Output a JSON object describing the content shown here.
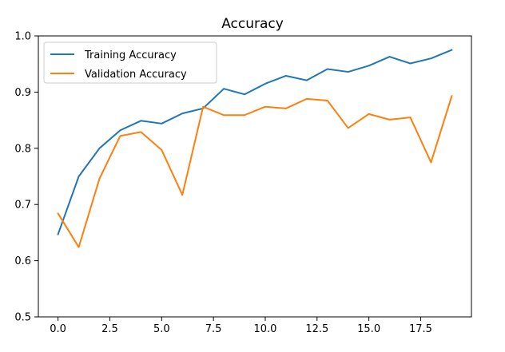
{
  "chart_data": {
    "type": "line",
    "title": "Accuracy",
    "xlabel": "",
    "ylabel": "",
    "x": [
      0,
      1,
      2,
      3,
      4,
      5,
      6,
      7,
      8,
      9,
      10,
      11,
      12,
      13,
      14,
      15,
      16,
      17,
      18,
      19
    ],
    "xlim": [
      -0.95,
      19.95
    ],
    "ylim": [
      0.5,
      1.0
    ],
    "xticks": [
      0.0,
      2.5,
      5.0,
      7.5,
      10.0,
      12.5,
      15.0,
      17.5
    ],
    "xtick_labels": [
      "0.0",
      "2.5",
      "5.0",
      "7.5",
      "10.0",
      "12.5",
      "15.0",
      "17.5"
    ],
    "yticks": [
      0.5,
      0.6,
      0.7,
      0.8,
      0.9,
      1.0
    ],
    "ytick_labels": [
      "0.5",
      "0.6",
      "0.7",
      "0.8",
      "0.9",
      "1.0"
    ],
    "grid": false,
    "legend_position": "top-left",
    "series": [
      {
        "name": "Training Accuracy",
        "color": "#1f77b4",
        "values": [
          0.647,
          0.75,
          0.8,
          0.832,
          0.849,
          0.844,
          0.862,
          0.871,
          0.906,
          0.896,
          0.915,
          0.929,
          0.921,
          0.941,
          0.936,
          0.947,
          0.963,
          0.951,
          0.96,
          0.975
        ]
      },
      {
        "name": "Validation Accuracy",
        "color": "#ff7f0e",
        "values": [
          0.684,
          0.624,
          0.746,
          0.822,
          0.829,
          0.797,
          0.717,
          0.874,
          0.859,
          0.859,
          0.874,
          0.871,
          0.888,
          0.885,
          0.836,
          0.861,
          0.851,
          0.855,
          0.775,
          0.893
        ]
      }
    ]
  }
}
